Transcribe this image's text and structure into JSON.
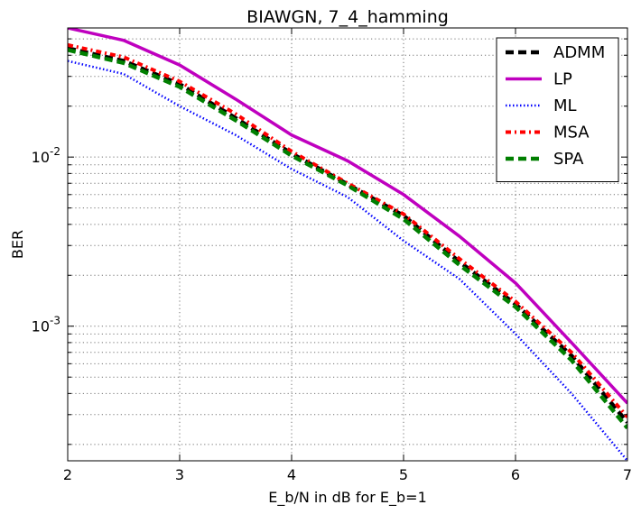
{
  "chart_data": {
    "type": "line",
    "title": "BIAWGN, 7_4_hamming",
    "xlabel": "E_b/N in dB for E_b=1",
    "ylabel": "BER",
    "xlim": [
      2,
      7
    ],
    "ylim": [
      0.00016,
      0.058
    ],
    "yscale": "log",
    "grid": true,
    "legend_position": "top-right",
    "x_ticks": [
      {
        "value": 2,
        "label": "2"
      },
      {
        "value": 3,
        "label": "3"
      },
      {
        "value": 4,
        "label": "4"
      },
      {
        "value": 5,
        "label": "5"
      },
      {
        "value": 6,
        "label": "6"
      },
      {
        "value": 7,
        "label": "7"
      }
    ],
    "y_ticks": [
      {
        "value": 0.01,
        "base": "10",
        "exp": "-2"
      },
      {
        "value": 0.001,
        "base": "10",
        "exp": "-3"
      }
    ],
    "series": [
      {
        "name": "ADMM",
        "color": "#000000",
        "style": "dashed",
        "x": [
          2,
          2.5,
          3,
          3.5,
          4,
          4.5,
          5,
          5.5,
          6,
          6.5,
          7
        ],
        "y": [
          0.044,
          0.037,
          0.027,
          0.017,
          0.0105,
          0.0069,
          0.0045,
          0.0024,
          0.00135,
          0.00067,
          0.00027
        ]
      },
      {
        "name": "LP",
        "color": "#bf00bf",
        "style": "solid",
        "x": [
          2,
          2.5,
          3,
          3.5,
          4,
          4.5,
          5,
          5.5,
          6,
          6.5,
          7
        ],
        "y": [
          0.058,
          0.049,
          0.035,
          0.022,
          0.0135,
          0.0095,
          0.006,
          0.0034,
          0.0018,
          0.0008,
          0.00035
        ]
      },
      {
        "name": "ML",
        "color": "#0000ff",
        "style": "dotted",
        "x": [
          2,
          2.5,
          3,
          3.5,
          4,
          4.5,
          5,
          5.5,
          6,
          6.5,
          7
        ],
        "y": [
          0.037,
          0.031,
          0.02,
          0.0135,
          0.0085,
          0.0058,
          0.0032,
          0.0019,
          0.0009,
          0.0004,
          0.00016
        ]
      },
      {
        "name": "MSA",
        "color": "#ff0000",
        "style": "dashdot",
        "x": [
          2,
          2.5,
          3,
          3.5,
          4,
          4.5,
          5,
          5.5,
          6,
          6.5,
          7
        ],
        "y": [
          0.046,
          0.039,
          0.028,
          0.018,
          0.0108,
          0.007,
          0.0046,
          0.0025,
          0.0014,
          0.0007,
          0.00029
        ]
      },
      {
        "name": "SPA",
        "color": "#007f00",
        "style": "dashed",
        "x": [
          2,
          2.5,
          3,
          3.5,
          4,
          4.5,
          5,
          5.5,
          6,
          6.5,
          7
        ],
        "y": [
          0.043,
          0.036,
          0.026,
          0.0165,
          0.0102,
          0.0068,
          0.0043,
          0.0023,
          0.0013,
          0.00063,
          0.00025
        ]
      }
    ]
  }
}
